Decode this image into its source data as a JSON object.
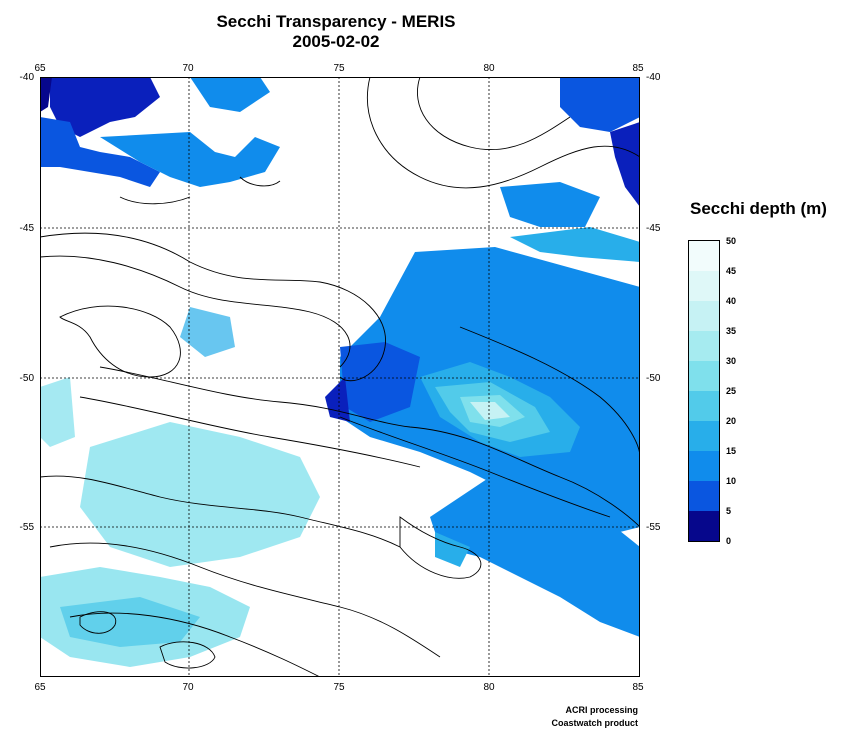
{
  "title": "Secchi Transparency - MERIS",
  "date": "2005-02-02",
  "map": {
    "lon_ticks": [
      "65",
      "70",
      "75",
      "80",
      "85"
    ],
    "lat_ticks": [
      "-40",
      "-45",
      "-50",
      "-55"
    ],
    "lon_range": [
      65,
      85
    ],
    "lat_range": [
      -40,
      -60
    ],
    "graticule": "dashed",
    "contours": "black bathymetry lines"
  },
  "legend": {
    "title": "Secchi depth (m)",
    "labels": [
      "50",
      "45",
      "40",
      "35",
      "30",
      "25",
      "20",
      "15",
      "10",
      "5",
      "0"
    ],
    "colors": [
      "#f2fcfc",
      "#dff8f8",
      "#c6f2f4",
      "#a6ebf0",
      "#7fe0ec",
      "#52cbea",
      "#28aeea",
      "#108cec",
      "#0a56e0",
      "#0a20bc",
      "#06078c"
    ]
  },
  "credits": {
    "line1": "ACRI processing",
    "line2": "Coastwatch product"
  }
}
